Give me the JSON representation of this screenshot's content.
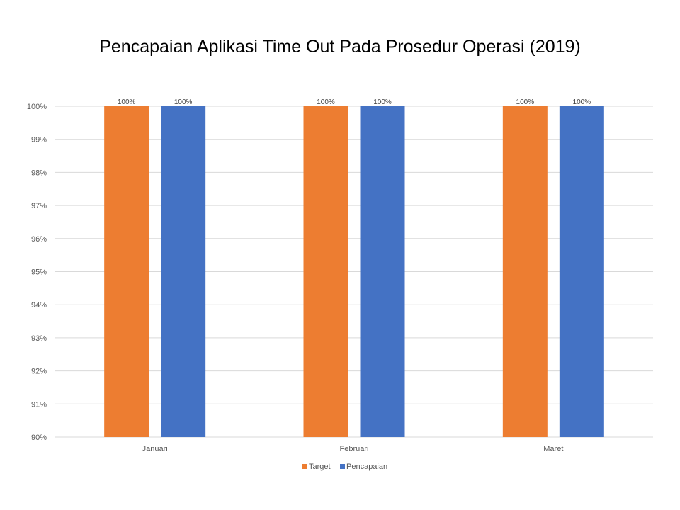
{
  "chart_data": {
    "type": "bar",
    "title": "Pencapaian Aplikasi Time Out Pada Prosedur Operasi (2019)",
    "xlabel": "",
    "ylabel": "",
    "categories": [
      "Januari",
      "Februari",
      "Maret"
    ],
    "series": [
      {
        "name": "Target",
        "values": [
          100,
          100,
          100
        ],
        "color": "#ED7D31",
        "labels": [
          "100%",
          "100%",
          "100%"
        ]
      },
      {
        "name": "Pencapaian",
        "values": [
          100,
          100,
          100
        ],
        "color": "#4472C4",
        "labels": [
          "100%",
          "100%",
          "100%"
        ]
      }
    ],
    "ylim": [
      90,
      100
    ],
    "yticks": [
      90,
      91,
      92,
      93,
      94,
      95,
      96,
      97,
      98,
      99,
      100
    ],
    "ytick_labels": [
      "90%",
      "91%",
      "92%",
      "93%",
      "94%",
      "95%",
      "96%",
      "97%",
      "98%",
      "99%",
      "100%"
    ],
    "grid": true,
    "gridline_color": "#D9D9D9",
    "legend_placement": "bottom-center"
  }
}
